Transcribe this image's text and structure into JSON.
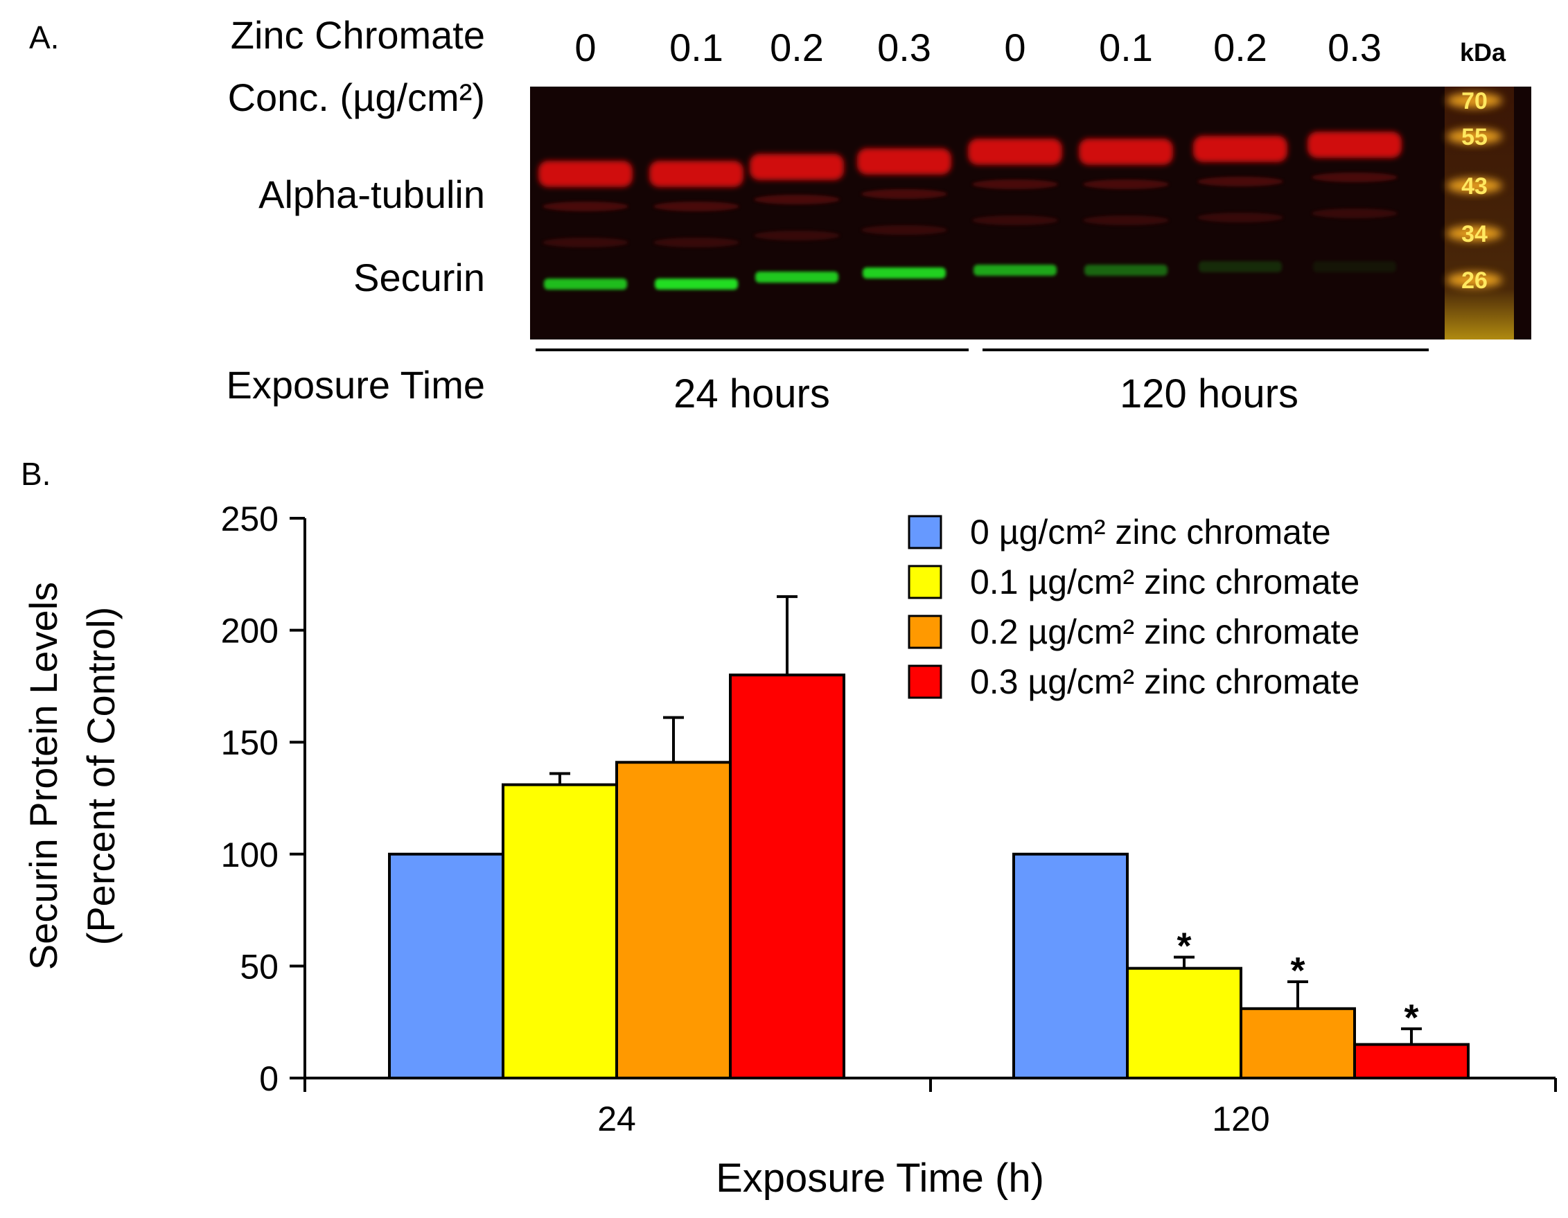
{
  "panel_a": {
    "label": "A.",
    "conc_label_line1": "Zinc Chromate",
    "conc_label_line2": "Conc. (µg/cm²)",
    "lane_values": [
      "0",
      "0.1",
      "0.2",
      "0.3",
      "0",
      "0.1",
      "0.2",
      "0.3"
    ],
    "lane_intensity": {
      "alpha_tubulin": [
        1,
        1,
        1,
        1,
        1,
        1,
        1,
        1
      ],
      "securin": [
        0.85,
        1.0,
        0.9,
        0.95,
        0.75,
        0.45,
        0.18,
        0.08
      ]
    },
    "bands": [
      {
        "name": "Alpha-tubulin"
      },
      {
        "name": "Securin"
      }
    ],
    "ladder_unit": "kDa",
    "ladder_markers": [
      "70",
      "55",
      "43",
      "34",
      "26"
    ],
    "exposure_label": "Exposure Time",
    "group_labels": [
      "24 hours",
      "120 hours"
    ],
    "colors": {
      "tubulin": "#d01010",
      "securin": "#22dd22",
      "ladder": "#ffb020",
      "background": "#140404"
    }
  },
  "chart_data": {
    "panel_label": "B.",
    "type": "bar",
    "categories": [
      "24",
      "120"
    ],
    "xlabel": "Exposure Time (h)",
    "ylabel_line1": "Securin Protein Levels",
    "ylabel_line2": "(Percent of Control)",
    "ylim": [
      0,
      250
    ],
    "yticks": [
      0,
      50,
      100,
      150,
      200,
      250
    ],
    "grid": false,
    "legend_position": "top-right",
    "series": [
      {
        "name": "0 µg/cm² zinc chromate",
        "color": "#6699ff",
        "values": [
          100,
          100
        ],
        "errors": [
          0,
          0
        ],
        "significant": [
          false,
          false
        ]
      },
      {
        "name": "0.1 µg/cm² zinc chromate",
        "color": "#ffff00",
        "values": [
          131,
          49
        ],
        "errors": [
          5,
          5
        ],
        "significant": [
          false,
          true
        ]
      },
      {
        "name": "0.2 µg/cm² zinc chromate",
        "color": "#ff9900",
        "values": [
          141,
          31
        ],
        "errors": [
          20,
          12
        ],
        "significant": [
          false,
          true
        ]
      },
      {
        "name": "0.3 µg/cm² zinc chromate",
        "color": "#ff0000",
        "values": [
          180,
          15
        ],
        "errors": [
          35,
          7
        ],
        "significant": [
          false,
          true
        ]
      }
    ],
    "significance_marker": "*"
  }
}
